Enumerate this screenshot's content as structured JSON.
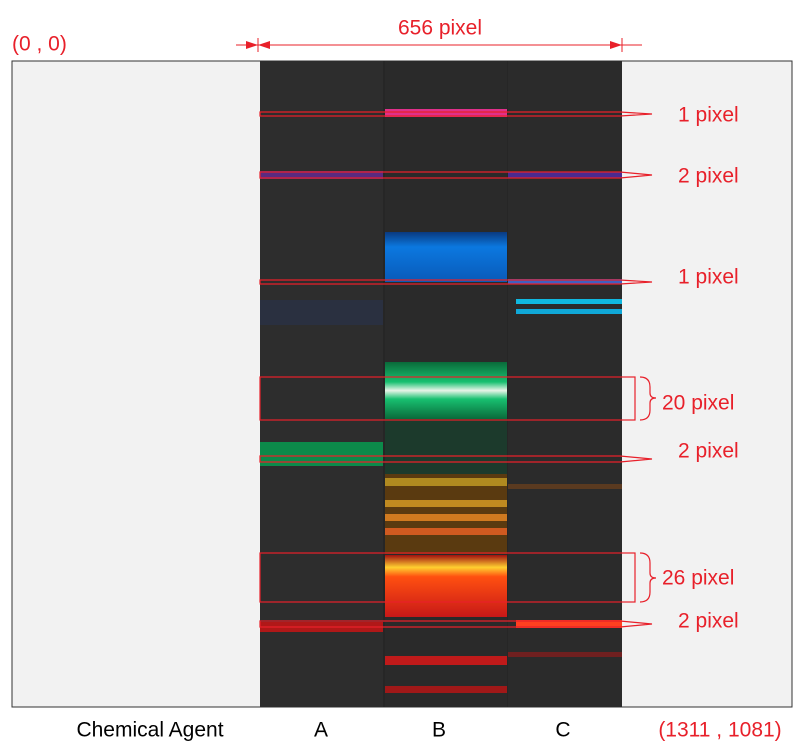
{
  "origin_label": "(0 , 0)",
  "width_label": "656 pixel",
  "annotations": [
    "1 pixel",
    "2 pixel",
    "1 pixel",
    "20 pixel",
    "2 pixel",
    "26 pixel",
    "2 pixel"
  ],
  "axis_label": "Chemical Agent",
  "agents": [
    "A",
    "B",
    "C"
  ],
  "end_label": "(1311 , 1081)"
}
